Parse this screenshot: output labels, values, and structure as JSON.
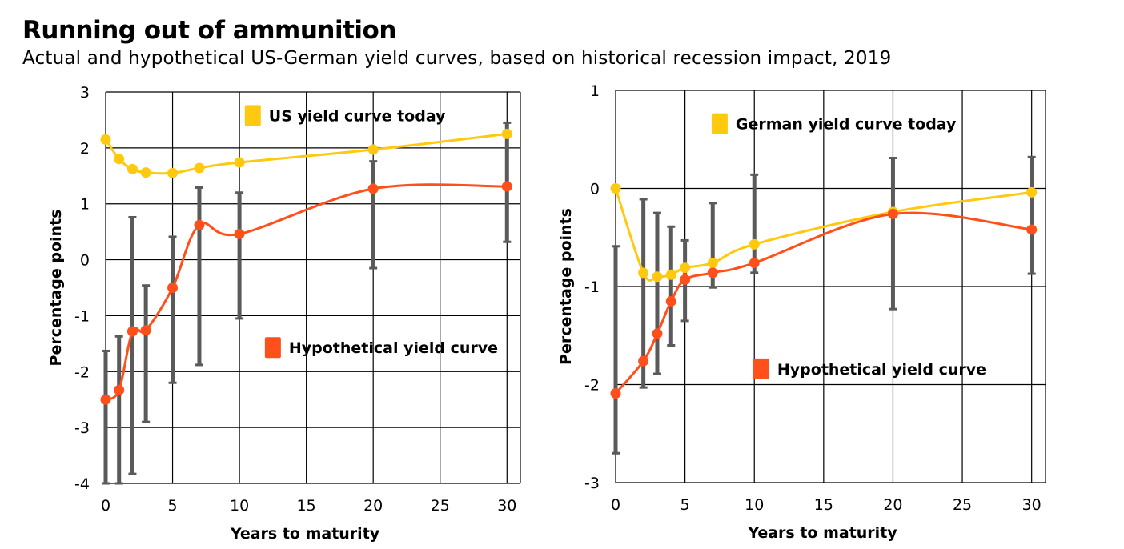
{
  "title": "Running out of ammunition",
  "subtitle": "Actual and hypothetical US-German yield curves, based on historical recession impact, 2019",
  "colors": {
    "today": "#FFC90F",
    "hypothetical": "#FF4F1A",
    "errorbar": "#5A5A5A",
    "grid": "#000000"
  },
  "chart_data": [
    {
      "type": "line",
      "xlabel": "Years to maturity",
      "ylabel": "Percentage points",
      "xlim": [
        0,
        31
      ],
      "ylim": [
        -4,
        3
      ],
      "xticks": [
        0,
        5,
        10,
        15,
        20,
        25,
        30
      ],
      "yticks": [
        3,
        2,
        1,
        0,
        -1,
        -2,
        -3,
        -4
      ],
      "grid": true,
      "series": [
        {
          "name": "US yield curve today",
          "key": "today",
          "x": [
            0,
            1,
            2,
            3,
            5,
            7,
            10,
            20,
            30
          ],
          "y": [
            2.15,
            1.8,
            1.62,
            1.56,
            1.55,
            1.64,
            1.74,
            1.97,
            2.25
          ]
        },
        {
          "name": "Hypothetical yield curve",
          "key": "hypothetical",
          "x": [
            0,
            1,
            2,
            3,
            5,
            7,
            10,
            20,
            30
          ],
          "y": [
            -2.5,
            -2.33,
            -1.28,
            -1.26,
            -0.5,
            0.62,
            0.46,
            1.27,
            1.31
          ],
          "error_low": [
            -4.0,
            -4.0,
            -3.83,
            -2.9,
            -2.2,
            -1.88,
            -1.05,
            -0.15,
            0.32
          ],
          "error_high": [
            -1.63,
            -1.37,
            0.76,
            -0.46,
            0.41,
            1.29,
            1.2,
            1.76,
            2.45
          ]
        }
      ],
      "legend": [
        {
          "label": "US yield curve today",
          "key": "today",
          "x": 11,
          "y": 2.58
        },
        {
          "label": "Hypothetical yield curve",
          "key": "hypothetical",
          "x": 12.5,
          "y": -1.57
        }
      ]
    },
    {
      "type": "line",
      "xlabel": "Years to maturity",
      "ylabel": "Percentage points",
      "xlim": [
        0,
        31
      ],
      "ylim": [
        -3,
        1
      ],
      "xticks": [
        0,
        5,
        10,
        15,
        20,
        25,
        30
      ],
      "yticks": [
        1,
        0,
        -1,
        -2,
        -3
      ],
      "grid": true,
      "series": [
        {
          "name": "German yield curve today",
          "key": "today",
          "x": [
            0,
            2,
            3,
            4,
            5,
            7,
            10,
            20,
            30
          ],
          "y": [
            0.0,
            -0.86,
            -0.9,
            -0.88,
            -0.81,
            -0.76,
            -0.57,
            -0.24,
            -0.04
          ]
        },
        {
          "name": "Hypothetical yield curve",
          "key": "hypothetical",
          "x": [
            0,
            2,
            3,
            4,
            5,
            7,
            10,
            20,
            30
          ],
          "y": [
            -2.09,
            -1.76,
            -1.48,
            -1.15,
            -0.93,
            -0.86,
            -0.76,
            -0.26,
            -0.42
          ],
          "error_low": [
            -2.7,
            -2.03,
            -1.89,
            -1.6,
            -1.35,
            -1.01,
            -0.86,
            -1.23,
            -0.87
          ],
          "error_high": [
            -0.59,
            -0.11,
            -0.25,
            -0.39,
            -0.53,
            -0.15,
            0.14,
            0.31,
            0.32
          ]
        }
      ],
      "legend": [
        {
          "label": "German yield curve today",
          "key": "today",
          "x": 7.5,
          "y": 0.66
        },
        {
          "label": "Hypothetical yield curve",
          "key": "hypothetical",
          "x": 10.5,
          "y": -1.84
        }
      ]
    }
  ]
}
